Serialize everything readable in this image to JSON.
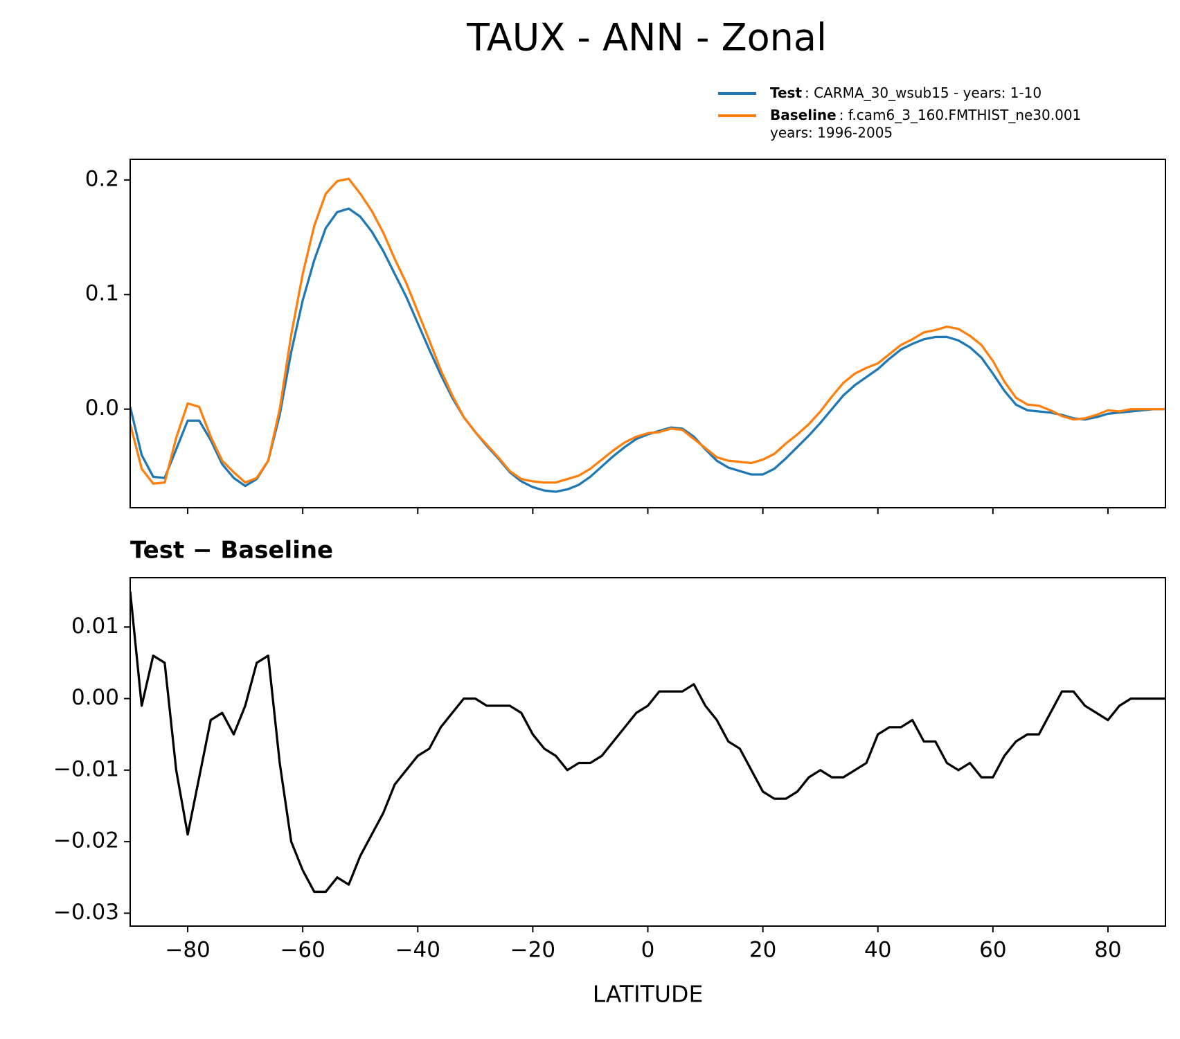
{
  "chart_data": [
    {
      "type": "line",
      "title": "TAUX - ANN - Zonal",
      "x": [
        -90,
        -88,
        -86,
        -84,
        -82,
        -80,
        -78,
        -76,
        -74,
        -72,
        -70,
        -68,
        -66,
        -64,
        -62,
        -60,
        -58,
        -56,
        -54,
        -52,
        -50,
        -48,
        -46,
        -44,
        -42,
        -40,
        -38,
        -36,
        -34,
        -32,
        -30,
        -28,
        -26,
        -24,
        -22,
        -20,
        -18,
        -16,
        -14,
        -12,
        -10,
        -8,
        -6,
        -4,
        -2,
        0,
        2,
        4,
        6,
        8,
        10,
        12,
        14,
        16,
        18,
        20,
        22,
        24,
        26,
        28,
        30,
        32,
        34,
        36,
        38,
        40,
        42,
        44,
        46,
        48,
        50,
        52,
        54,
        56,
        58,
        60,
        62,
        64,
        66,
        68,
        70,
        72,
        74,
        76,
        78,
        80,
        82,
        84,
        86,
        88,
        90
      ],
      "series": [
        {
          "name": "Test",
          "label": [
            ": CARMA_30_wsub15 - years: 1-10"
          ],
          "color": "#1f77b4",
          "values": [
            0.002,
            -0.04,
            -0.059,
            -0.06,
            -0.035,
            -0.01,
            -0.01,
            -0.027,
            -0.048,
            -0.06,
            -0.067,
            -0.061,
            -0.045,
            -0.005,
            0.05,
            0.095,
            0.13,
            0.158,
            0.172,
            0.175,
            0.168,
            0.155,
            0.138,
            0.118,
            0.098,
            0.075,
            0.052,
            0.03,
            0.01,
            -0.007,
            -0.02,
            -0.032,
            -0.043,
            -0.055,
            -0.063,
            -0.068,
            -0.071,
            -0.072,
            -0.07,
            -0.066,
            -0.059,
            -0.05,
            -0.041,
            -0.033,
            -0.026,
            -0.022,
            -0.019,
            -0.016,
            -0.017,
            -0.024,
            -0.035,
            -0.045,
            -0.051,
            -0.054,
            -0.057,
            -0.057,
            -0.052,
            -0.043,
            -0.033,
            -0.023,
            -0.012,
            0.0,
            0.012,
            0.021,
            0.028,
            0.035,
            0.044,
            0.052,
            0.057,
            0.061,
            0.063,
            0.063,
            0.06,
            0.054,
            0.045,
            0.031,
            0.016,
            0.004,
            -0.001,
            -0.002,
            -0.003,
            -0.005,
            -0.008,
            -0.009,
            -0.007,
            -0.004,
            -0.003,
            -0.002,
            -0.001,
            0.0,
            0.0
          ]
        },
        {
          "name": "Baseline",
          "label": [
            ": f.cam6_3_160.FMTHIST_ne30.001",
            "years: 1996-2005"
          ],
          "color": "#ff7f0e",
          "values": [
            -0.013,
            -0.052,
            -0.065,
            -0.064,
            -0.025,
            0.005,
            0.002,
            -0.024,
            -0.045,
            -0.055,
            -0.064,
            -0.06,
            -0.045,
            0.0,
            0.065,
            0.118,
            0.16,
            0.188,
            0.199,
            0.201,
            0.188,
            0.173,
            0.154,
            0.131,
            0.11,
            0.085,
            0.06,
            0.034,
            0.012,
            -0.007,
            -0.02,
            -0.031,
            -0.042,
            -0.054,
            -0.061,
            -0.063,
            -0.064,
            -0.064,
            -0.061,
            -0.058,
            -0.052,
            -0.044,
            -0.036,
            -0.029,
            -0.024,
            -0.021,
            -0.02,
            -0.017,
            -0.018,
            -0.026,
            -0.034,
            -0.042,
            -0.045,
            -0.046,
            -0.047,
            -0.044,
            -0.039,
            -0.03,
            -0.022,
            -0.013,
            -0.002,
            0.011,
            0.023,
            0.031,
            0.036,
            0.04,
            0.048,
            0.056,
            0.061,
            0.067,
            0.069,
            0.072,
            0.07,
            0.064,
            0.056,
            0.042,
            0.024,
            0.01,
            0.004,
            0.003,
            -0.001,
            -0.006,
            -0.009,
            -0.008,
            -0.005,
            -0.001,
            -0.002,
            0.0,
            0.0,
            0.0,
            0.0
          ]
        }
      ],
      "xlim": [
        -90,
        90
      ],
      "xticks": [
        -80,
        -60,
        -40,
        -20,
        0,
        20,
        40,
        60,
        80
      ],
      "ylim": [
        -0.086,
        0.218
      ],
      "yticks": [
        {
          "value": 0,
          "label": "0.0"
        },
        {
          "value": 0.1,
          "label": "0.1"
        },
        {
          "value": 0.2,
          "label": "0.2"
        }
      ],
      "legend": "upper right"
    },
    {
      "type": "line",
      "title": "Test − Baseline",
      "xlabel": "LATITUDE",
      "x": [
        -90,
        -88,
        -86,
        -84,
        -82,
        -80,
        -78,
        -76,
        -74,
        -72,
        -70,
        -68,
        -66,
        -64,
        -62,
        -60,
        -58,
        -56,
        -54,
        -52,
        -50,
        -48,
        -46,
        -44,
        -42,
        -40,
        -38,
        -36,
        -34,
        -32,
        -30,
        -28,
        -26,
        -24,
        -22,
        -20,
        -18,
        -16,
        -14,
        -12,
        -10,
        -8,
        -6,
        -4,
        -2,
        0,
        2,
        4,
        6,
        8,
        10,
        12,
        14,
        16,
        18,
        20,
        22,
        24,
        26,
        28,
        30,
        32,
        34,
        36,
        38,
        40,
        42,
        44,
        46,
        48,
        50,
        52,
        54,
        56,
        58,
        60,
        62,
        64,
        66,
        68,
        70,
        72,
        74,
        76,
        78,
        80,
        82,
        84,
        86,
        88,
        90
      ],
      "series": [
        {
          "color": "#000000",
          "values": [
            0.015,
            -0.001,
            0.006,
            0.005,
            -0.01,
            -0.019,
            -0.011,
            -0.003,
            -0.002,
            -0.005,
            -0.001,
            0.005,
            0.006,
            -0.009,
            -0.02,
            -0.024,
            -0.027,
            -0.027,
            -0.025,
            -0.026,
            -0.022,
            -0.019,
            -0.016,
            -0.012,
            -0.01,
            -0.008,
            -0.007,
            -0.004,
            -0.002,
            0.0,
            0.0,
            -0.001,
            -0.001,
            -0.001,
            -0.002,
            -0.005,
            -0.007,
            -0.008,
            -0.01,
            -0.009,
            -0.009,
            -0.008,
            -0.006,
            -0.004,
            -0.002,
            -0.001,
            0.001,
            0.001,
            0.001,
            0.002,
            -0.001,
            -0.003,
            -0.006,
            -0.007,
            -0.01,
            -0.013,
            -0.014,
            -0.014,
            -0.013,
            -0.011,
            -0.01,
            -0.011,
            -0.011,
            -0.01,
            -0.009,
            -0.005,
            -0.004,
            -0.004,
            -0.003,
            -0.006,
            -0.006,
            -0.009,
            -0.01,
            -0.009,
            -0.011,
            -0.011,
            -0.008,
            -0.006,
            -0.005,
            -0.005,
            -0.002,
            0.001,
            0.001,
            -0.001,
            -0.002,
            -0.003,
            -0.001,
            0.0,
            0.0,
            0.0,
            0.0
          ]
        }
      ],
      "xlim": [
        -90,
        90
      ],
      "xticks": [
        {
          "value": -80,
          "label": "−80"
        },
        {
          "value": -60,
          "label": "−60"
        },
        {
          "value": -40,
          "label": "−40"
        },
        {
          "value": -20,
          "label": "−20"
        },
        0,
        20,
        40,
        60,
        80
      ],
      "ylim": [
        -0.0318,
        0.0169
      ],
      "yticks": [
        {
          "value": -0.03,
          "label": "−0.03"
        },
        {
          "value": -0.02,
          "label": "−0.02"
        },
        {
          "value": -0.01,
          "label": "−0.01"
        },
        {
          "value": 0,
          "label": "0.00"
        },
        {
          "value": 0.01,
          "label": "0.01"
        }
      ]
    }
  ]
}
